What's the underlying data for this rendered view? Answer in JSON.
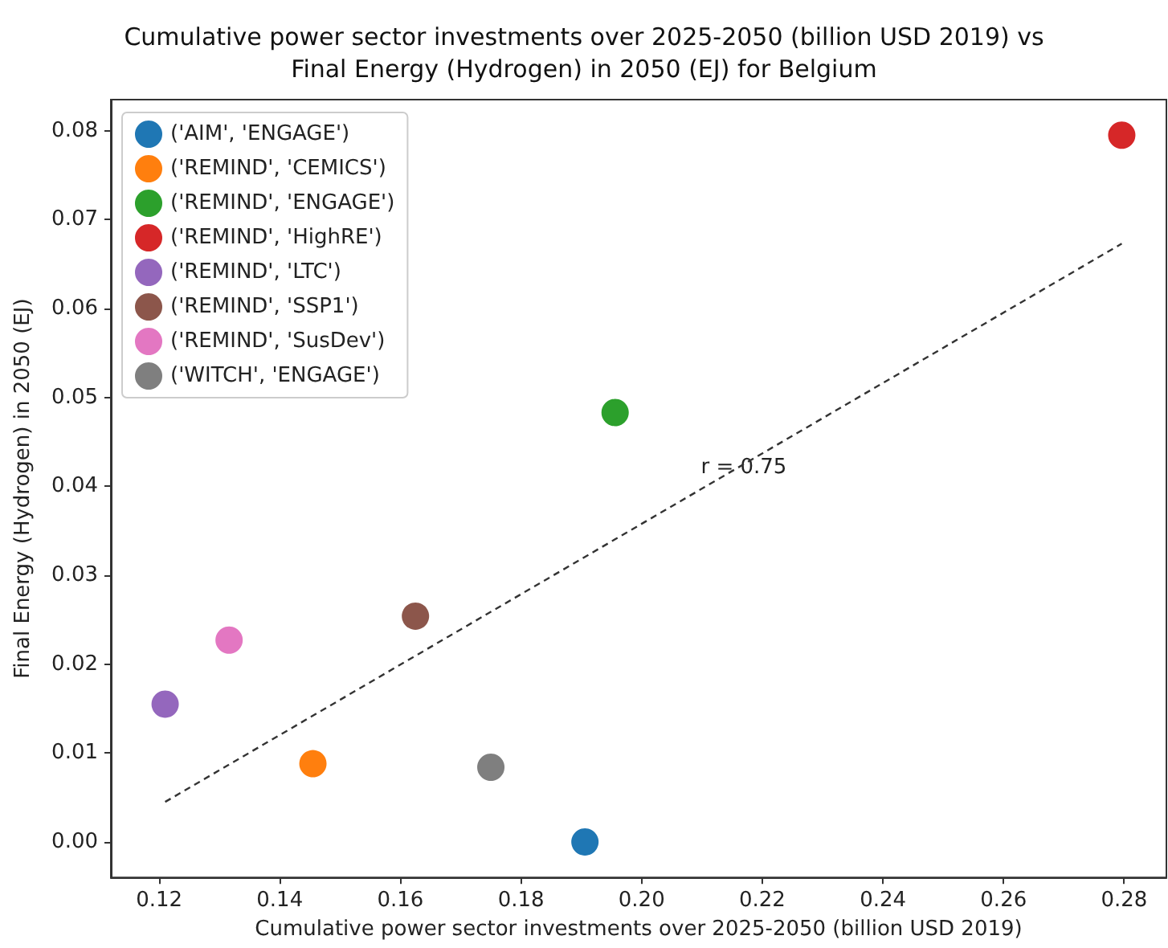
{
  "chart_data": {
    "type": "scatter",
    "title": "Cumulative power sector investments over 2025-2050 (billion USD 2019) vs\nFinal Energy (Hydrogen) in 2050 (EJ) for Belgium",
    "xlabel": "Cumulative power sector investments over 2025-2050 (billion USD 2019)",
    "ylabel": "Final Energy (Hydrogen) in 2050 (EJ)",
    "series": [
      {
        "name": "('AIM', 'ENGAGE')",
        "color": "#1f77b4",
        "x": [
          0.1906
        ],
        "values": [
          0.0
        ]
      },
      {
        "name": "('REMIND', 'CEMICS')",
        "color": "#ff7f0e",
        "x": [
          0.1455
        ],
        "values": [
          0.0088
        ]
      },
      {
        "name": "('REMIND', 'ENGAGE')",
        "color": "#2ca02c",
        "x": [
          0.1956
        ],
        "values": [
          0.0483
        ]
      },
      {
        "name": "('REMIND', 'HighRE')",
        "color": "#d62728",
        "x": [
          0.2796
        ],
        "values": [
          0.0795
        ]
      },
      {
        "name": "('REMIND', 'LTC')",
        "color": "#9467bd",
        "x": [
          0.121
        ],
        "values": [
          0.0155
        ]
      },
      {
        "name": "('REMIND', 'SSP1')",
        "color": "#8c564b",
        "x": [
          0.1625
        ],
        "values": [
          0.0254
        ]
      },
      {
        "name": "('REMIND', 'SusDev')",
        "color": "#e377c2",
        "x": [
          0.1316
        ],
        "values": [
          0.0227
        ]
      },
      {
        "name": "('WITCH', 'ENGAGE')",
        "color": "#7f7f7f",
        "x": [
          0.175
        ],
        "values": [
          0.0084
        ]
      },
      {
        "type": "line",
        "color": "#333333",
        "line_style": "dashed",
        "marker": "none",
        "x": [
          0.121,
          0.2796
        ],
        "values": [
          0.0045,
          0.0673
        ]
      }
    ],
    "annotations": [
      "r = 0.75"
    ],
    "xlim": [
      0.112,
      0.287
    ],
    "xticks": [
      {
        "value": 0.12,
        "label": "0.12"
      },
      {
        "value": 0.14,
        "label": "0.14"
      },
      {
        "value": 0.16,
        "label": "0.16"
      },
      {
        "value": 0.18,
        "label": "0.18"
      },
      {
        "value": 0.2,
        "label": "0.20"
      },
      {
        "value": 0.22,
        "label": "0.22"
      },
      {
        "value": 0.24,
        "label": "0.24"
      },
      {
        "value": 0.26,
        "label": "0.26"
      },
      {
        "value": 0.28,
        "label": "0.28"
      }
    ],
    "ylim": [
      -0.004,
      0.0835
    ],
    "yticks": [
      {
        "value": 0,
        "label": "0.00"
      },
      {
        "value": 0.01,
        "label": "0.01"
      },
      {
        "value": 0.02,
        "label": "0.02"
      },
      {
        "value": 0.03,
        "label": "0.03"
      },
      {
        "value": 0.04,
        "label": "0.04"
      },
      {
        "value": 0.05,
        "label": "0.05"
      },
      {
        "value": 0.06,
        "label": "0.06"
      },
      {
        "value": 0.07,
        "label": "0.07"
      },
      {
        "value": 0.08,
        "label": "0.08"
      }
    ],
    "marker": "circle",
    "grid": false,
    "legend": "top left"
  }
}
